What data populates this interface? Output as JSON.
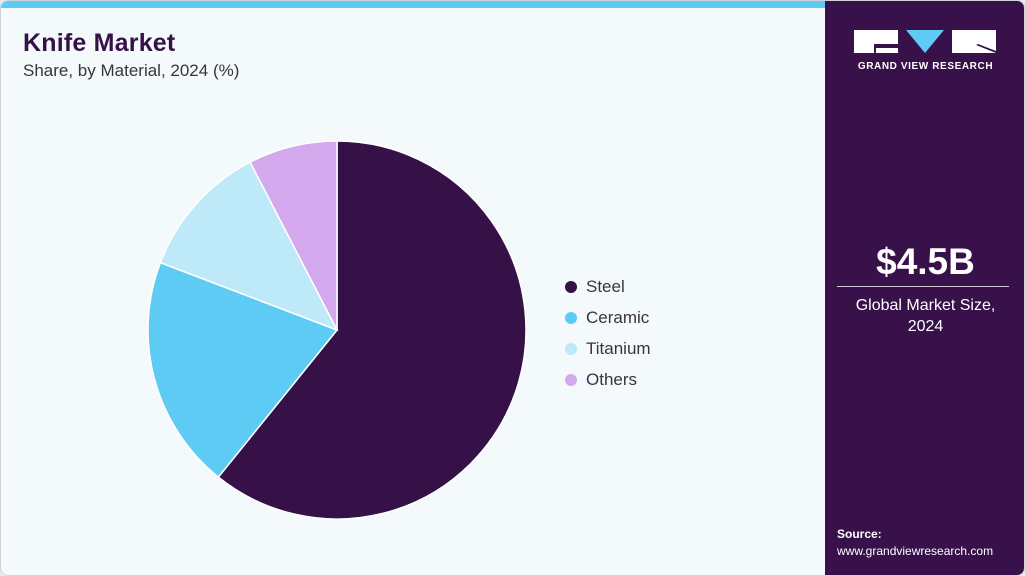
{
  "header": {
    "title": "Knife Market",
    "subtitle": "Share, by Material, 2024 (%)"
  },
  "colors": {
    "accent_bar": "#5ecbf5",
    "side_panel": "#38114a",
    "background": "#f4f9fc"
  },
  "legend": {
    "items": [
      {
        "label": "Steel",
        "color": "#361148"
      },
      {
        "label": "Ceramic",
        "color": "#5ecbf5"
      },
      {
        "label": "Titanium",
        "color": "#bde9f9"
      },
      {
        "label": "Others",
        "color": "#d4a8ec"
      }
    ]
  },
  "side_panel": {
    "logo_icon": "grand-view-research-logo",
    "logo_text": "GRAND VIEW RESEARCH",
    "market_value": "$4.5B",
    "market_label_line1": "Global Market Size,",
    "market_label_line2": "2024",
    "source_label": "Source:",
    "source_url": "www.grandviewresearch.com"
  },
  "chart_data": {
    "type": "pie",
    "title": "Knife Market",
    "subtitle": "Share, by Material, 2024 (%)",
    "categories": [
      "Steel",
      "Ceramic",
      "Titanium",
      "Others"
    ],
    "values": [
      60.8,
      20.0,
      11.6,
      7.6
    ],
    "colors": [
      "#361148",
      "#5ecbf5",
      "#bde9f9",
      "#d4a8ec"
    ],
    "start_angle": "12 o'clock, clockwise",
    "legend_position": "right",
    "data_labels": false
  }
}
